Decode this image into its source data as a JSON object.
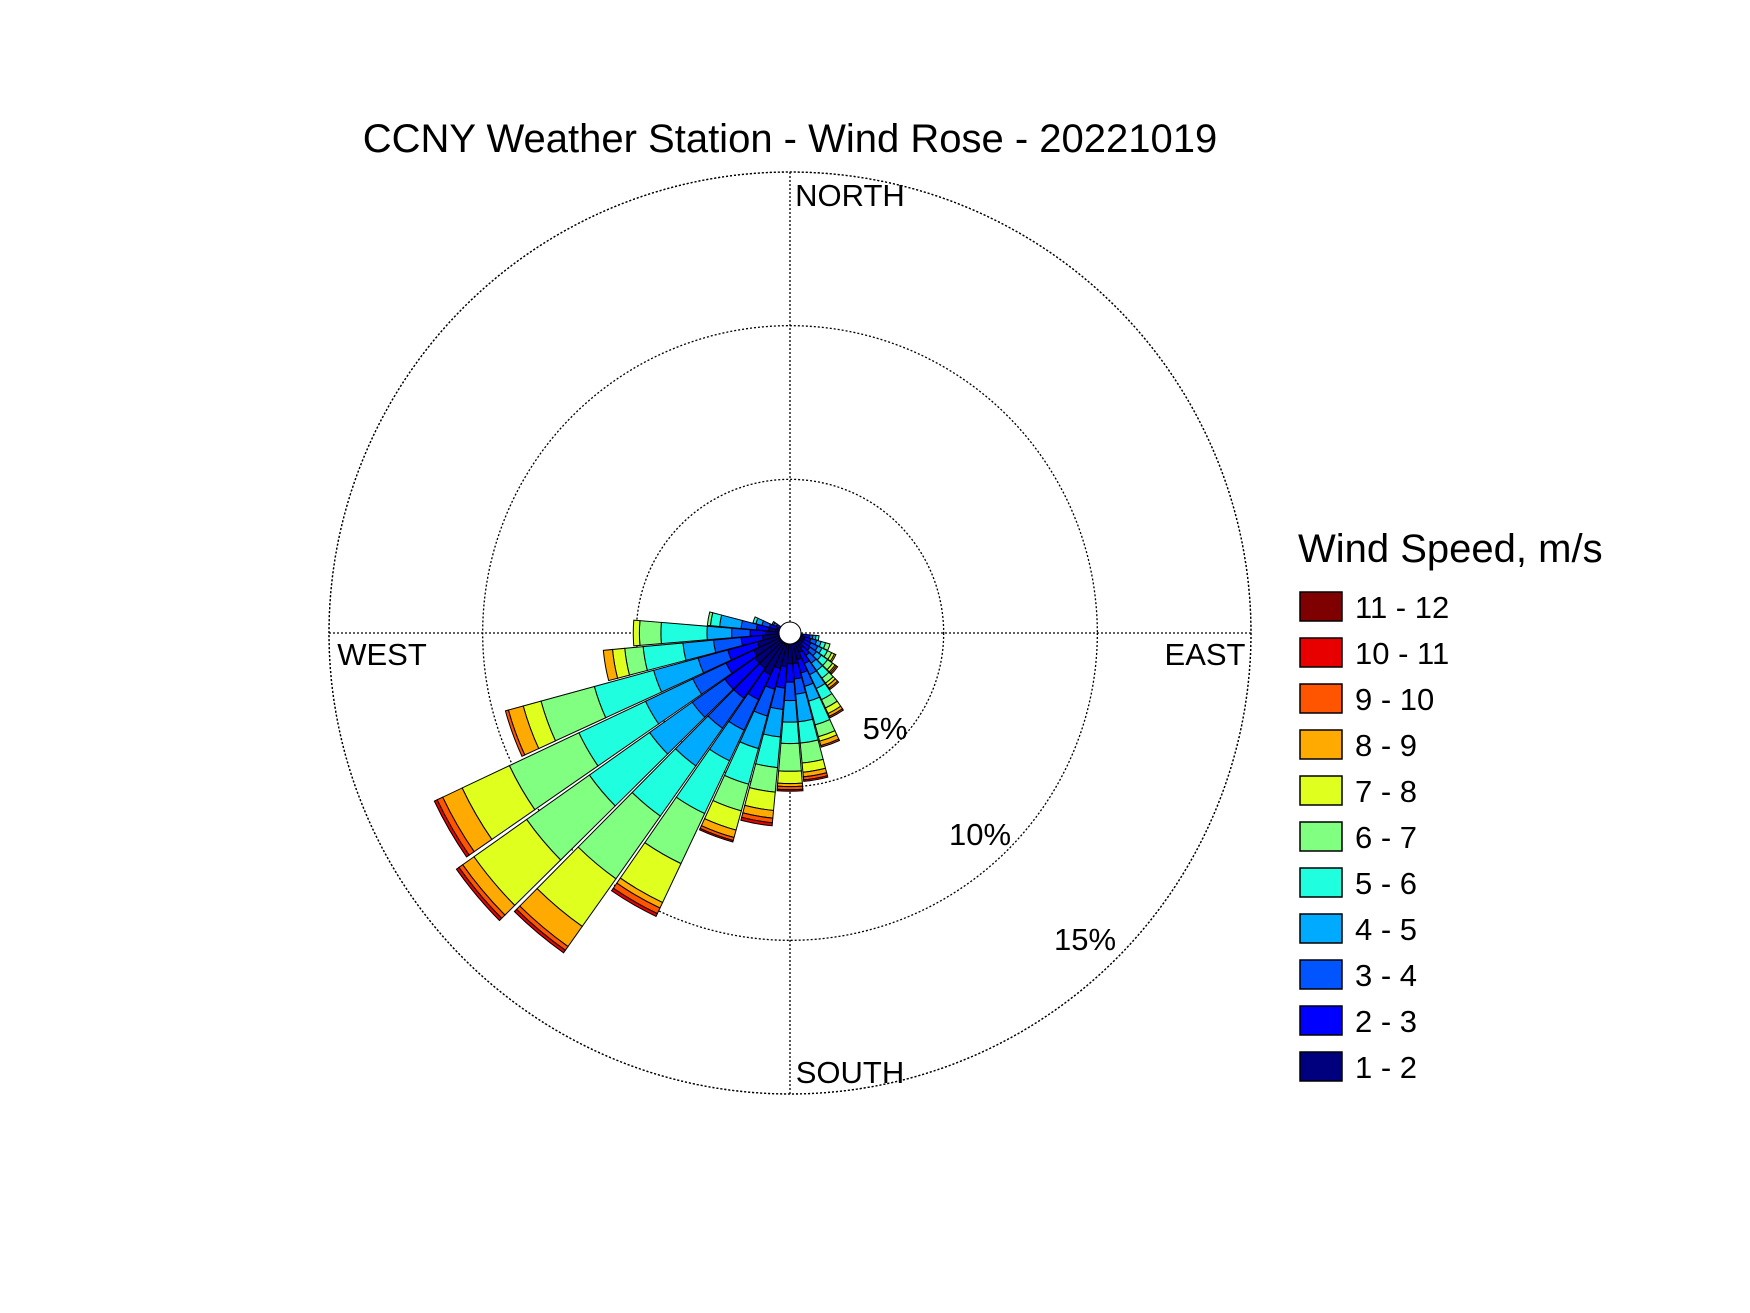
{
  "chart_data": {
    "type": "wind-rose",
    "title": "CCNY Weather Station - Wind Rose - 20221019",
    "directions": {
      "north": "NORTH",
      "east": "EAST",
      "south": "SOUTH",
      "west": "WEST"
    },
    "radial_unit": "%",
    "radial_ticks": [
      {
        "value": 5,
        "label": "5%"
      },
      {
        "value": 10,
        "label": "10%"
      },
      {
        "value": 15,
        "label": "15%"
      }
    ],
    "radial_max": 15,
    "grid": true,
    "direction_bins": 36,
    "bin_width_deg": 10,
    "legend": {
      "title": "Wind Speed, m/s",
      "placement": "right",
      "ranges": [
        "11 - 12",
        "10 - 11",
        "9 - 10",
        "8 - 9",
        "7 - 8",
        "6 - 7",
        "5 - 6",
        "4 - 5",
        "3 - 4",
        "2 - 3",
        "1 - 2"
      ]
    },
    "speed_bins": [
      "1 - 2",
      "2 - 3",
      "3 - 4",
      "4 - 5",
      "5 - 6",
      "6 - 7",
      "7 - 8",
      "8 - 9",
      "9 - 10",
      "10 - 11",
      "11 - 12"
    ],
    "speed_colors": [
      "#00007f",
      "#0000ff",
      "#0055ff",
      "#00aaff",
      "#1fffdf",
      "#80ff80",
      "#dfff1f",
      "#ffaa00",
      "#ff5500",
      "#e80000",
      "#7f0000"
    ],
    "series": [
      {
        "direction": 100,
        "cumulative": [
          0.45,
          0.65,
          0.75,
          0.85,
          0.95
        ]
      },
      {
        "direction": 110,
        "cumulative": [
          0.5,
          0.7,
          0.9,
          1.05,
          1.2,
          1.35
        ]
      },
      {
        "direction": 120,
        "cumulative": [
          0.5,
          0.75,
          1.0,
          1.15,
          1.35,
          1.5,
          1.6,
          1.65
        ]
      },
      {
        "direction": 130,
        "cumulative": [
          0.5,
          0.8,
          1.05,
          1.25,
          1.5,
          1.7,
          1.8,
          1.85,
          1.9
        ]
      },
      {
        "direction": 140,
        "cumulative": [
          0.6,
          0.9,
          1.2,
          1.5,
          1.8,
          2.0,
          2.1,
          2.2,
          2.25
        ]
      },
      {
        "direction": 150,
        "cumulative": [
          0.7,
          1.1,
          1.5,
          2.0,
          2.4,
          2.7,
          2.9,
          3.0,
          3.05
        ]
      },
      {
        "direction": 160,
        "cumulative": [
          0.9,
          1.35,
          1.8,
          2.3,
          3.1,
          3.5,
          3.65,
          3.8,
          3.85
        ]
      },
      {
        "direction": 170,
        "cumulative": [
          1.0,
          1.5,
          2.0,
          2.9,
          3.6,
          4.25,
          4.55,
          4.7,
          4.8,
          4.85
        ]
      },
      {
        "direction": 180,
        "cumulative": [
          1.0,
          1.6,
          2.2,
          2.9,
          3.6,
          4.5,
          4.9,
          5.0,
          5.1,
          5.15
        ]
      },
      {
        "direction": 190,
        "cumulative": [
          1.1,
          1.8,
          2.5,
          3.4,
          4.4,
          5.2,
          5.8,
          6.05,
          6.2,
          6.3
        ]
      },
      {
        "direction": 200,
        "cumulative": [
          1.2,
          1.9,
          2.8,
          3.9,
          5.1,
          6.0,
          6.65,
          6.9,
          7.0,
          7.05
        ]
      },
      {
        "direction": 210,
        "cumulative": [
          1.5,
          2.4,
          3.5,
          4.6,
          6.5,
          8.3,
          9.7,
          9.9,
          10.1,
          10.2
        ]
      },
      {
        "direction": 220,
        "cumulative": [
          1.4,
          2.6,
          3.8,
          5.3,
          7.3,
          9.8,
          11.7,
          12.5,
          12.65,
          12.75
        ]
      },
      {
        "direction": 230,
        "cumulative": [
          1.4,
          2.6,
          3.9,
          5.6,
          8.0,
          10.5,
          12.6,
          13.05,
          13.2,
          13.3
        ]
      },
      {
        "direction": 240,
        "cumulative": [
          1.3,
          2.3,
          3.5,
          5.2,
          7.6,
          10.1,
          11.8,
          12.5,
          12.7,
          12.8
        ]
      },
      {
        "direction": 250,
        "cumulative": [
          1.1,
          2.1,
          3.1,
          4.6,
          6.6,
          8.4,
          9.0,
          9.5,
          9.6
        ]
      },
      {
        "direction": 260,
        "cumulative": [
          0.9,
          1.6,
          2.5,
          3.5,
          4.8,
          5.4,
          5.8,
          6.1
        ]
      },
      {
        "direction": 270,
        "cumulative": [
          0.8,
          1.3,
          1.9,
          2.7,
          4.2,
          4.9,
          5.1
        ]
      },
      {
        "direction": 280,
        "cumulative": [
          0.7,
          1.1,
          1.6,
          2.3,
          2.6,
          2.7
        ]
      },
      {
        "direction": 290,
        "cumulative": [
          0.45,
          0.7,
          0.95,
          1.15,
          1.25
        ]
      },
      {
        "direction": 300,
        "cumulative": [
          0.35,
          0.5,
          0.6,
          0.65
        ]
      },
      {
        "direction": 310,
        "cumulative": [
          0.25,
          0.3,
          0.35
        ]
      },
      {
        "direction": 320,
        "cumulative": [
          0.3,
          0.33
        ]
      }
    ]
  }
}
